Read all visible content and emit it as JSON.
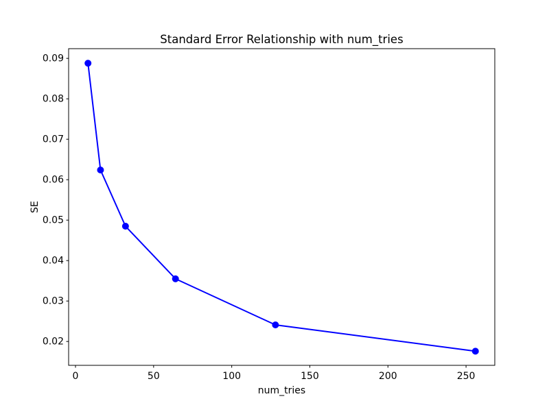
{
  "chart_data": {
    "type": "line",
    "title": "Standard Error Relationship with num_tries",
    "xlabel": "num_tries",
    "ylabel": "SE",
    "series": [
      {
        "name": "SE vs num_tries",
        "x": [
          8,
          16,
          32,
          64,
          128,
          256
        ],
        "y": [
          0.0888,
          0.0624,
          0.0485,
          0.0355,
          0.0241,
          0.0176
        ],
        "line_color": "#0000ff",
        "marker": "circle",
        "marker_color": "#0000ff"
      }
    ],
    "xlim": [
      -4.4,
      268.4
    ],
    "ylim": [
      0.0141,
      0.0924
    ],
    "xticks": [
      0,
      50,
      100,
      150,
      200,
      250
    ],
    "yticks": [
      0.02,
      0.03,
      0.04,
      0.05,
      0.06,
      0.07,
      0.08,
      0.09
    ],
    "ytick_decimals": 2,
    "grid": false,
    "legend_position": "none",
    "background_color": "#ffffff",
    "axis_color": "#000000",
    "text_color": "#000000"
  }
}
